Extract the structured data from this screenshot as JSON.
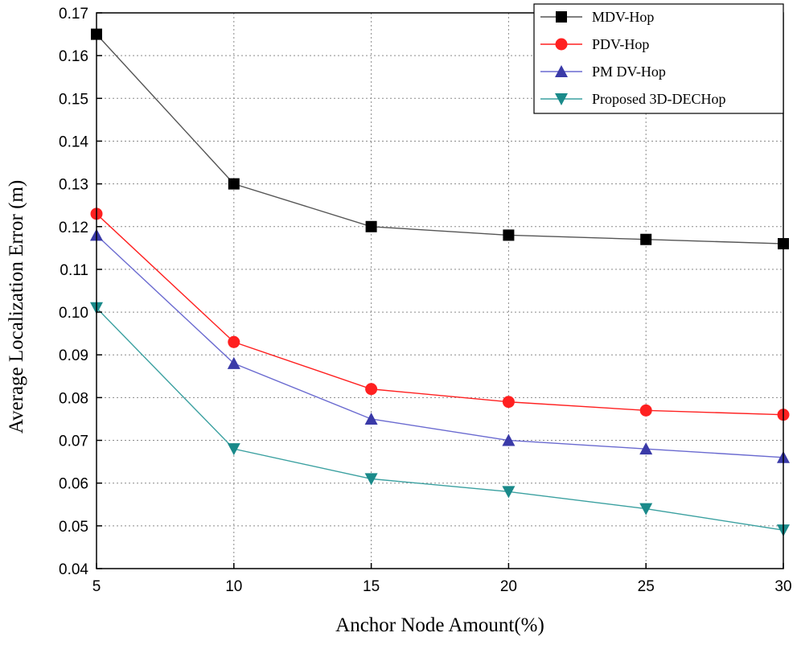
{
  "chart_data": {
    "type": "line",
    "title": "",
    "xlabel": "Anchor Node Amount(%)",
    "ylabel": "Average Localization Error (m)",
    "x": [
      5,
      10,
      15,
      20,
      25,
      30
    ],
    "xlim": [
      5,
      30
    ],
    "ylim": [
      0.04,
      0.17
    ],
    "x_ticks": [
      "5",
      "10",
      "15",
      "20",
      "25",
      "30"
    ],
    "y_ticks": [
      "0.04",
      "0.05",
      "0.06",
      "0.07",
      "0.08",
      "0.09",
      "0.10",
      "0.11",
      "0.12",
      "0.13",
      "0.14",
      "0.15",
      "0.16",
      "0.17"
    ],
    "grid": true,
    "legend_position": "top-right",
    "series": [
      {
        "name": "MDV-Hop",
        "marker": "square",
        "color": "#000000",
        "line_color": "#555555",
        "values": [
          0.165,
          0.13,
          0.12,
          0.118,
          0.117,
          0.116
        ]
      },
      {
        "name": "PDV-Hop",
        "marker": "circle",
        "color": "#ff2020",
        "line_color": "#ff2020",
        "values": [
          0.123,
          0.093,
          0.082,
          0.079,
          0.077,
          0.076
        ]
      },
      {
        "name": "PM DV-Hop",
        "marker": "triangle-up",
        "color": "#3a3aa8",
        "line_color": "#6a6ad0",
        "values": [
          0.118,
          0.088,
          0.075,
          0.07,
          0.068,
          0.066
        ]
      },
      {
        "name": "Proposed 3D-DECHop",
        "marker": "triangle-down",
        "color": "#1a8a8a",
        "line_color": "#3aa0a0",
        "values": [
          0.101,
          0.068,
          0.061,
          0.058,
          0.054,
          0.049
        ]
      }
    ]
  }
}
